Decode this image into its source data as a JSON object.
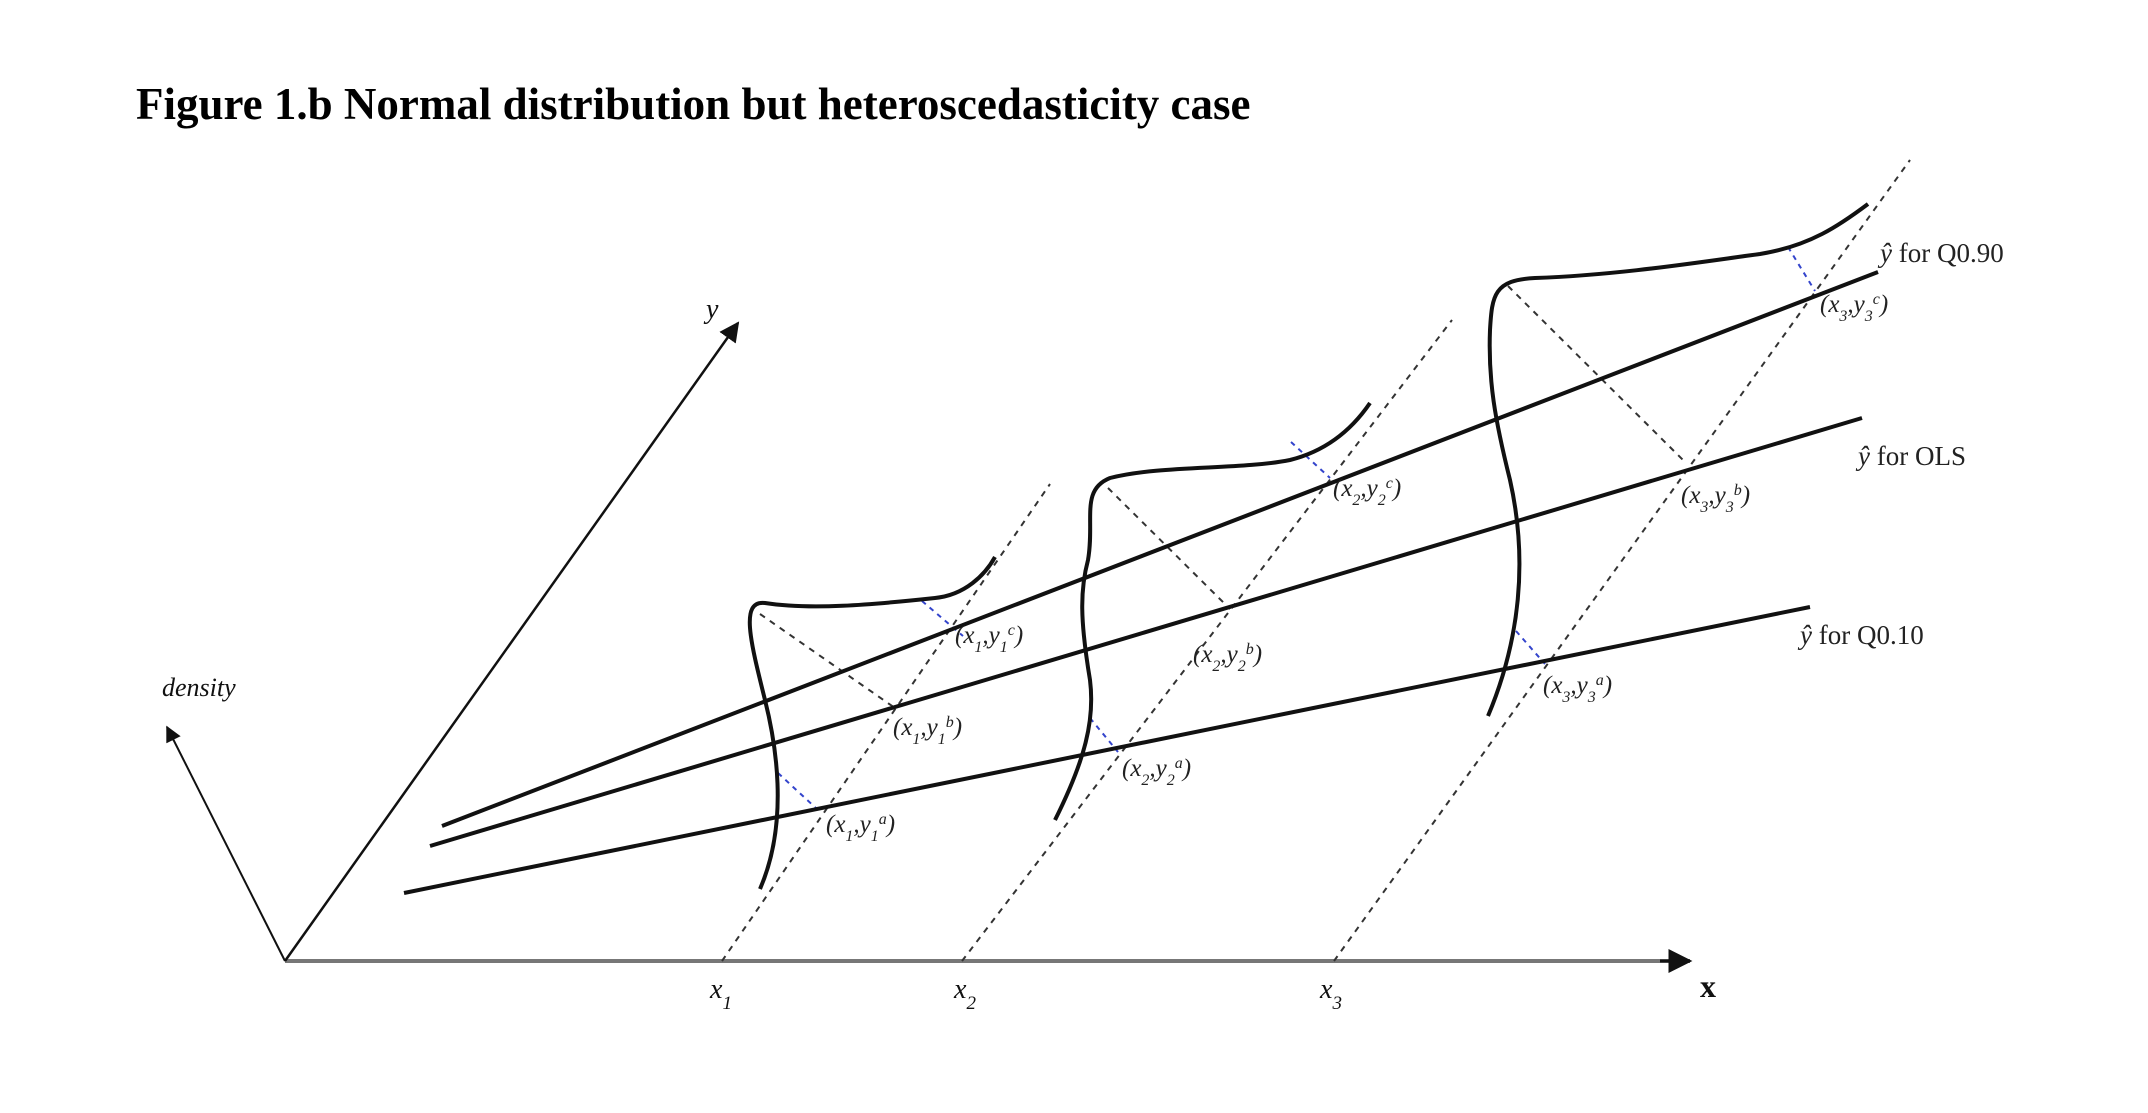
{
  "title": "Figure 1.b Normal distribution but heteroscedasticity case",
  "axes": {
    "x_label": "x",
    "y_label": "y",
    "density_label": "density",
    "x_ticks": [
      {
        "base": "x",
        "sub": "1"
      },
      {
        "base": "x",
        "sub": "2"
      },
      {
        "base": "x",
        "sub": "3"
      }
    ]
  },
  "lines": [
    {
      "hat": "ŷ",
      "text": "for Q0.90"
    },
    {
      "hat": "ŷ",
      "text": "for OLS"
    },
    {
      "hat": "ŷ",
      "text": "for Q0.10"
    }
  ],
  "points": [
    {
      "xs": "1",
      "ys": "1",
      "sup": "c"
    },
    {
      "xs": "1",
      "ys": "1",
      "sup": "b"
    },
    {
      "xs": "1",
      "ys": "1",
      "sup": "a"
    },
    {
      "xs": "2",
      "ys": "2",
      "sup": "c"
    },
    {
      "xs": "2",
      "ys": "2",
      "sup": "b"
    },
    {
      "xs": "2",
      "ys": "2",
      "sup": "a"
    },
    {
      "xs": "3",
      "ys": "3",
      "sup": "c"
    },
    {
      "xs": "3",
      "ys": "3",
      "sup": "b"
    },
    {
      "xs": "3",
      "ys": "3",
      "sup": "a"
    }
  ],
  "colors": {
    "ink": "#111111",
    "guide": "#333333",
    "accent": "#3344cc"
  }
}
